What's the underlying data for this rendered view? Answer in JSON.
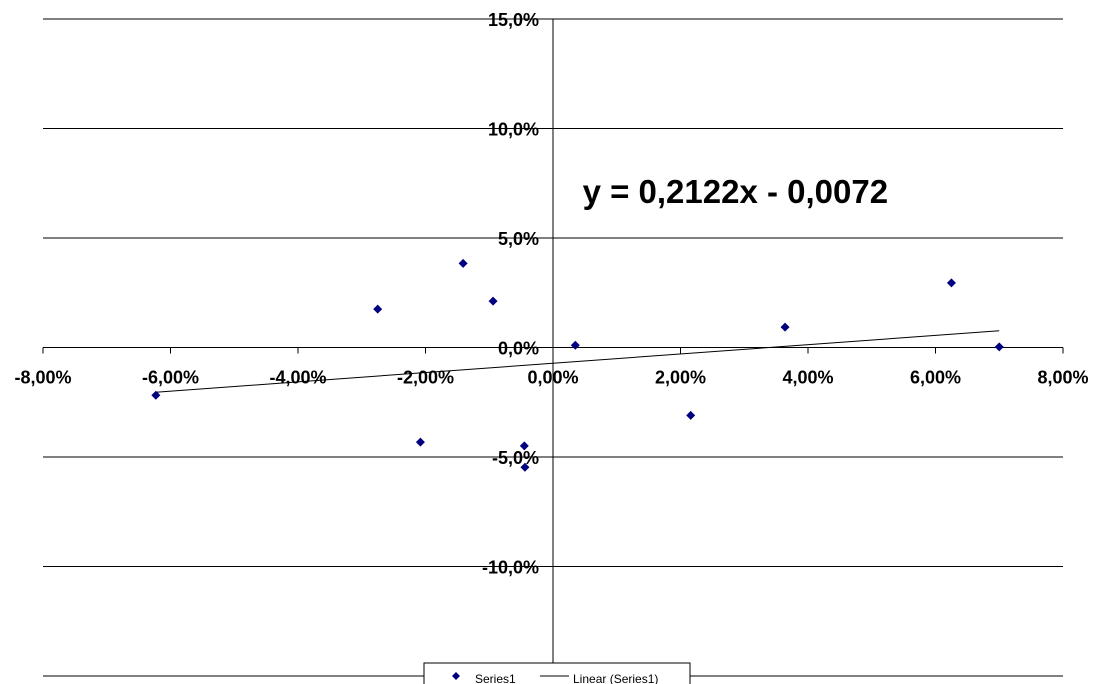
{
  "chart_data": {
    "type": "scatter",
    "title": "",
    "xlabel": "",
    "ylabel": "",
    "xlim": [
      -0.08,
      0.08
    ],
    "ylim": [
      -0.15,
      0.15
    ],
    "x_ticks": [
      -0.08,
      -0.06,
      -0.04,
      -0.02,
      0.0,
      0.02,
      0.04,
      0.06,
      0.08
    ],
    "x_tick_labels": [
      "-8,00%",
      "-6,00%",
      "-4,00%",
      "-2,00%",
      "0,00%",
      "2,00%",
      "4,00%",
      "6,00%",
      "8,00%"
    ],
    "y_ticks": [
      0.15,
      0.1,
      0.05,
      0.0,
      -0.05,
      -0.1
    ],
    "y_tick_labels": [
      "15,0%",
      "10,0%",
      "5,0%",
      "0,0%",
      "-5,0%",
      "-10,0%"
    ],
    "horizontal_gridlines": true,
    "vertical_gridlines": false,
    "series": [
      {
        "name": "Series1",
        "kind": "points",
        "marker": "diamond",
        "color": "#000080",
        "x": [
          -0.0623,
          -0.0275,
          -0.0208,
          -0.0141,
          -0.0094,
          -0.0045,
          -0.0044,
          0.0035,
          0.0216,
          0.0364,
          0.0625,
          0.07
        ],
        "y": [
          -0.0218,
          0.0175,
          -0.0432,
          0.0384,
          0.0212,
          -0.0449,
          -0.0547,
          0.001,
          -0.031,
          0.0093,
          0.0295,
          0.0003
        ]
      },
      {
        "name": "Linear (Series1)",
        "kind": "trendline",
        "color": "#000000",
        "slope": 0.2122,
        "intercept": -0.0072,
        "x_range": [
          -0.0623,
          0.07
        ]
      }
    ],
    "annotations": [
      {
        "text": "y = 0,2122x - 0,0072",
        "x": 0.0286,
        "y": 0.0714
      }
    ],
    "legend": {
      "position": "bottom",
      "entries": [
        "Series1",
        "Linear (Series1)"
      ]
    }
  }
}
